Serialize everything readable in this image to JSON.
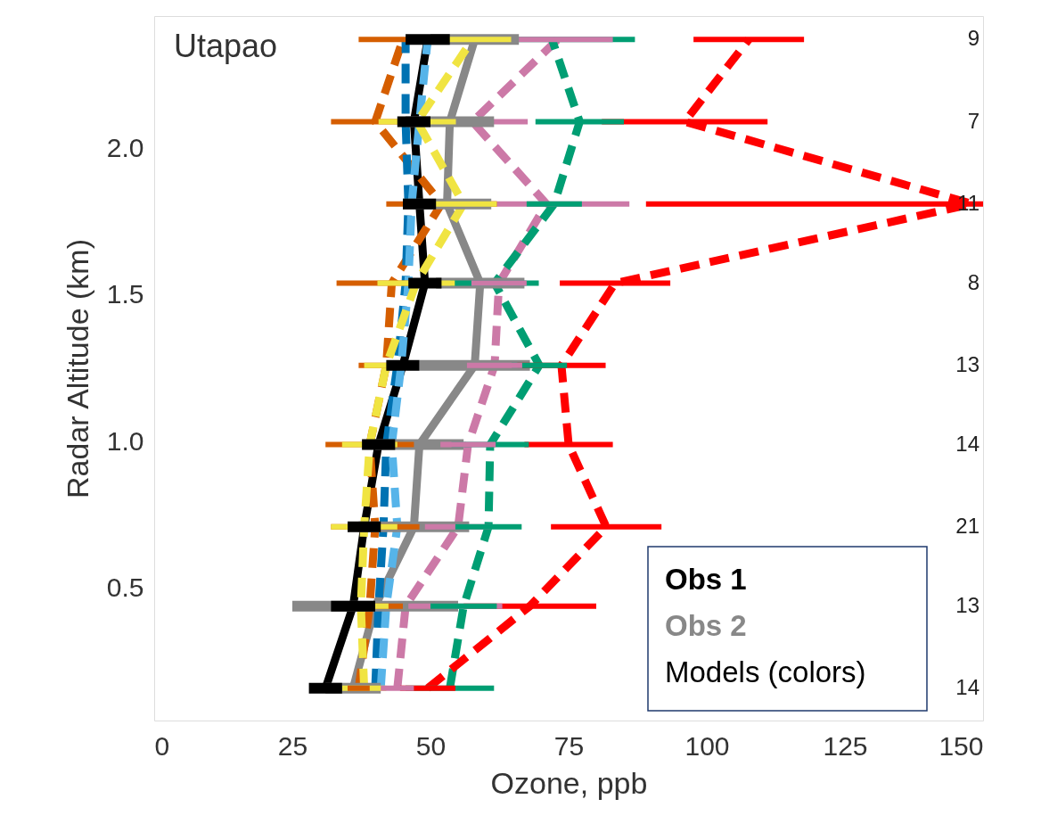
{
  "chart_data": {
    "type": "line",
    "title": "Utapao",
    "xlabel": "Ozone, ppb",
    "ylabel": "Radar Altitude (km)",
    "xlim": [
      0,
      150
    ],
    "xticks": [
      0,
      25,
      50,
      75,
      100,
      125,
      150
    ],
    "ylim": [
      0.05,
      2.45
    ],
    "yticks": [
      0.5,
      {
        "value": 1,
        "label": "1.0"
      },
      1.5,
      {
        "value": 2,
        "label": "2.0"
      }
    ],
    "grid": false,
    "legend": "bottom right",
    "marker": "none",
    "series": [
      {
        "name": "Obs 1",
        "color": "#000000",
        "line_style": "solid",
        "x": [
          31,
          36,
          38,
          40.6,
          45,
          49,
          48,
          47,
          49.5
        ],
        "values": [
          0.16,
          0.44,
          0.71,
          0.99,
          1.26,
          1.54,
          1.81,
          2.09,
          2.37
        ],
        "xerrors": [
          3,
          4,
          3,
          3,
          3,
          3,
          3,
          3,
          4
        ]
      },
      {
        "name": "Obs 2",
        "color": "#888888",
        "line_style": "solid",
        "x": [
          36,
          40,
          47,
          48,
          58,
          59,
          53,
          53.5,
          58
        ],
        "values": [
          0.16,
          0.44,
          0.71,
          0.99,
          1.26,
          1.54,
          1.81,
          2.09,
          2.37
        ],
        "xerrors": [
          5,
          15,
          10,
          8,
          10,
          8,
          8,
          8,
          8
        ]
      },
      {
        "color": "#d55e00",
        "line_style": "dashed",
        "x": [
          37,
          39,
          40,
          39,
          42,
          43,
          52,
          40,
          45
        ],
        "values": [
          0.16,
          0.44,
          0.71,
          0.99,
          1.26,
          1.54,
          1.81,
          2.09,
          2.37
        ],
        "xerrors": [
          2,
          6,
          8,
          8,
          5,
          10,
          10,
          8,
          8
        ]
      },
      {
        "color": "#0072b2",
        "line_style": "dashed",
        "x": [
          40,
          40.6,
          41.5,
          42,
          44,
          45.5,
          46,
          45.5,
          45.5
        ],
        "values": [
          0.16,
          0.44,
          0.71,
          0.99,
          1.26,
          1.54,
          1.81,
          2.09,
          2.37
        ]
      },
      {
        "color": "#56b4e9",
        "line_style": "dashed",
        "x": [
          41,
          42,
          44,
          43,
          44.7,
          46,
          46.6,
          48,
          49.5
        ],
        "values": [
          0.16,
          0.44,
          0.71,
          0.99,
          1.26,
          1.54,
          1.81,
          2.09,
          2.37
        ]
      },
      {
        "color": "#f0e442",
        "line_style": "dashed",
        "x": [
          38,
          37.4,
          38,
          39,
          42,
          47.4,
          56,
          47.6,
          57.6
        ],
        "values": [
          0.16,
          0.44,
          0.71,
          0.99,
          1.26,
          1.54,
          1.81,
          2.09,
          2.37
        ],
        "xerrors": [
          4,
          5,
          6,
          5,
          4,
          7,
          6,
          7,
          7
        ]
      },
      {
        "color": "#cc79a7",
        "line_style": "dashed",
        "x": [
          44,
          45.5,
          55,
          56.8,
          61.6,
          62.4,
          71,
          57.6,
          73
        ],
        "values": [
          0.16,
          0.44,
          0.71,
          0.99,
          1.26,
          1.54,
          1.81,
          2.09,
          2.37
        ],
        "xerrors": [
          3,
          [
            46,
            63
          ],
          6,
          5,
          5,
          5,
          15,
          10,
          10
        ]
      },
      {
        "color": "#009e73",
        "line_style": "dashed",
        "x": [
          53.5,
          56,
          60.5,
          60.8,
          69.7,
          61.6,
          72.4,
          77,
          72
        ],
        "values": [
          0.16,
          0.44,
          0.71,
          0.99,
          1.26,
          1.54,
          1.81,
          2.09,
          2.37
        ],
        "xerrors": [
          8,
          6,
          6,
          7,
          5,
          8,
          5,
          8,
          15
        ]
      },
      {
        "color": "#ff0000",
        "line_style": "dashed",
        "x": [
          49.5,
          68,
          81.8,
          75,
          73.7,
          83.4,
          148,
          96,
          107.6
        ],
        "values": [
          0.16,
          0.44,
          0.71,
          0.99,
          1.26,
          1.54,
          1.81,
          2.09,
          2.37
        ],
        "xerrors": [
          5,
          12,
          10,
          8,
          8,
          10,
          [
            89,
            150
          ],
          15,
          10
        ]
      }
    ],
    "annotations": [
      "14",
      "13",
      "21",
      "14",
      "13",
      "8",
      "11",
      "7",
      "9",
      "Models (colors)"
    ]
  }
}
